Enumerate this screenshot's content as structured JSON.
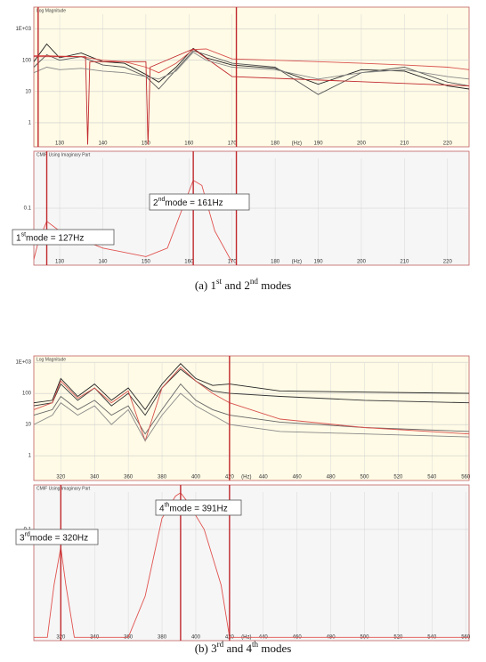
{
  "chart_data": [
    {
      "type": "line",
      "header": "Log Magnitude",
      "x_label": "(Hz)",
      "ylog": true,
      "grid": true,
      "background": "#fffbe6",
      "xlim": [
        124,
        225
      ],
      "xticks": [
        130,
        140,
        150,
        160,
        170,
        180,
        190,
        200,
        210,
        220
      ],
      "ylim": [
        0.17,
        5000
      ],
      "yticks": [
        {
          "value": 1000,
          "label": "1E+03"
        },
        100,
        10,
        1
      ],
      "markers": [
        125,
        171
      ],
      "marker_color": "#c0282d",
      "series": [
        {
          "color": "#222222",
          "x": [
            124,
            127,
            130,
            135,
            140,
            145,
            150,
            153,
            157,
            161,
            164,
            170,
            180,
            190,
            200,
            210,
            220,
            225
          ],
          "values": [
            90,
            330,
            120,
            170,
            90,
            80,
            35,
            20,
            60,
            240,
            120,
            70,
            55,
            17,
            50,
            45,
            15,
            12
          ]
        },
        {
          "color": "#555555",
          "x": [
            124,
            127,
            130,
            135,
            140,
            145,
            150,
            153,
            157,
            161,
            164,
            170,
            180,
            190,
            200,
            210,
            220,
            225
          ],
          "values": [
            60,
            150,
            100,
            130,
            70,
            60,
            30,
            12,
            50,
            200,
            150,
            80,
            60,
            8,
            40,
            60,
            20,
            15
          ]
        },
        {
          "color": "#d9534f",
          "x": [
            124,
            127,
            130,
            135,
            140,
            145,
            150,
            153,
            157,
            161,
            164,
            170,
            180,
            190,
            200,
            210,
            220,
            225
          ],
          "values": [
            140,
            140,
            135,
            130,
            100,
            90,
            60,
            40,
            80,
            220,
            230,
            110,
            100,
            90,
            80,
            70,
            60,
            50
          ]
        },
        {
          "color": "#c0282d",
          "x": [
            124,
            136,
            136.5,
            137,
            150,
            150.5,
            151,
            161,
            170,
            225
          ],
          "values": [
            130,
            130,
            0.2,
            90,
            90,
            0.2,
            60,
            230,
            30,
            15
          ]
        },
        {
          "color": "#888888",
          "x": [
            124,
            127,
            130,
            135,
            140,
            145,
            150,
            153,
            157,
            161,
            164,
            170,
            180,
            190,
            200,
            210,
            220,
            225
          ],
          "values": [
            40,
            60,
            50,
            55,
            45,
            40,
            30,
            25,
            45,
            180,
            100,
            60,
            50,
            25,
            40,
            50,
            30,
            25
          ]
        }
      ]
    },
    {
      "type": "line",
      "header": "CMIF Using Imaginary Part",
      "x_label": "(Hz)",
      "ylog": false,
      "grid": true,
      "background": "#f6f6f6",
      "xlim": [
        124,
        225
      ],
      "xticks": [
        130,
        140,
        150,
        160,
        170,
        180,
        190,
        200,
        210,
        220
      ],
      "ylim": [
        0,
        0.2
      ],
      "yticks": [
        0.1
      ],
      "markers": [
        127,
        161,
        171
      ],
      "marker_color": "#c0282d",
      "series": [
        {
          "color": "#e0524f",
          "x": [
            124,
            125,
            127,
            130,
            140,
            150,
            155,
            158,
            161,
            163,
            166,
            170
          ],
          "values": [
            0.01,
            0.04,
            0.077,
            0.06,
            0.03,
            0.015,
            0.03,
            0.09,
            0.149,
            0.14,
            0.06,
            0.005
          ]
        }
      ],
      "annotations": [
        {
          "parts": [
            {
              "text": "2"
            },
            {
              "text": "nd",
              "sup": true
            },
            {
              "text": "mode = 161Hz"
            }
          ]
        },
        {
          "parts": [
            {
              "text": "1"
            },
            {
              "text": "st",
              "sup": true
            },
            {
              "text": "mode = 127Hz"
            }
          ]
        }
      ]
    },
    {
      "type": "line",
      "header": "Log Magnitude",
      "x_label": "(Hz)",
      "ylog": true,
      "grid": true,
      "background": "#fffbe6",
      "xlim": [
        304,
        562
      ],
      "xticks": [
        320,
        340,
        360,
        380,
        400,
        420,
        440,
        460,
        480,
        500,
        520,
        540,
        560
      ],
      "ylim": [
        0.16,
        1600
      ],
      "yticks": [
        {
          "value": 1000,
          "label": "1E+03"
        },
        100,
        10,
        1
      ],
      "markers": [
        420
      ],
      "marker_color": "#c0282d",
      "series": [
        {
          "color": "#222222",
          "x": [
            304,
            315,
            320,
            330,
            340,
            350,
            360,
            370,
            380,
            391,
            400,
            410,
            420,
            450,
            500,
            562
          ],
          "values": [
            50,
            60,
            300,
            80,
            200,
            60,
            150,
            30,
            200,
            900,
            300,
            180,
            200,
            120,
            110,
            100
          ]
        },
        {
          "color": "#333333",
          "x": [
            304,
            315,
            320,
            330,
            340,
            350,
            360,
            370,
            380,
            391,
            400,
            410,
            420,
            450,
            500,
            562
          ],
          "values": [
            40,
            50,
            200,
            60,
            150,
            40,
            100,
            20,
            150,
            600,
            250,
            120,
            100,
            80,
            60,
            50
          ]
        },
        {
          "color": "#666666",
          "x": [
            304,
            315,
            320,
            330,
            340,
            350,
            360,
            370,
            380,
            391,
            400,
            410,
            420,
            450,
            500,
            562
          ],
          "values": [
            20,
            30,
            80,
            30,
            60,
            20,
            40,
            5,
            30,
            200,
            60,
            30,
            20,
            12,
            8,
            6
          ]
        },
        {
          "color": "#d9534f",
          "x": [
            304,
            315,
            320,
            330,
            340,
            350,
            360,
            370,
            380,
            391,
            400,
            410,
            420,
            450,
            500,
            562
          ],
          "values": [
            30,
            50,
            250,
            70,
            150,
            50,
            120,
            3,
            150,
            700,
            250,
            100,
            50,
            15,
            8,
            5
          ]
        },
        {
          "color": "#888888",
          "x": [
            304,
            315,
            320,
            330,
            340,
            350,
            360,
            370,
            380,
            391,
            400,
            410,
            420,
            450,
            500,
            562
          ],
          "values": [
            10,
            20,
            50,
            20,
            40,
            10,
            30,
            3,
            20,
            100,
            40,
            20,
            10,
            6,
            5,
            4
          ]
        }
      ]
    },
    {
      "type": "line",
      "header": "CMIF Using Imaginary Part",
      "x_label": "(Hz)",
      "ylog": false,
      "grid": true,
      "background": "#f6f6f6",
      "xlim": [
        304,
        562
      ],
      "xticks": [
        320,
        340,
        360,
        380,
        400,
        420,
        440,
        460,
        480,
        500,
        520,
        540,
        560
      ],
      "ylim": [
        0,
        0.14
      ],
      "yticks": [
        0.1
      ],
      "markers": [
        320,
        391,
        420
      ],
      "marker_color": "#c0282d",
      "series": [
        {
          "color": "#e0524f",
          "x": [
            304,
            312,
            316,
            320,
            323,
            328,
            340,
            360,
            370,
            380,
            388,
            391,
            395,
            405,
            415,
            420,
            430,
            562
          ],
          "values": [
            0.003,
            0.003,
            0.05,
            0.084,
            0.05,
            0.003,
            0.003,
            0.003,
            0.04,
            0.11,
            0.13,
            0.133,
            0.125,
            0.1,
            0.05,
            0.003,
            0.003,
            0.003
          ]
        }
      ],
      "annotations": [
        {
          "parts": [
            {
              "text": "4"
            },
            {
              "text": "th",
              "sup": true
            },
            {
              "text": "mode = 391Hz"
            }
          ]
        },
        {
          "parts": [
            {
              "text": "3"
            },
            {
              "text": "rd",
              "sup": true
            },
            {
              "text": "mode = 320Hz"
            }
          ]
        }
      ]
    }
  ],
  "captions": [
    {
      "parts": [
        {
          "text": "(a) 1"
        },
        {
          "text": "st",
          "sup": true
        },
        {
          "text": " and 2"
        },
        {
          "text": "nd",
          "sup": true
        },
        {
          "text": " modes"
        }
      ]
    },
    {
      "parts": [
        {
          "text": "(b) 3"
        },
        {
          "text": "rd",
          "sup": true
        },
        {
          "text": " and 4"
        },
        {
          "text": "th",
          "sup": true
        },
        {
          "text": " modes"
        }
      ]
    }
  ]
}
